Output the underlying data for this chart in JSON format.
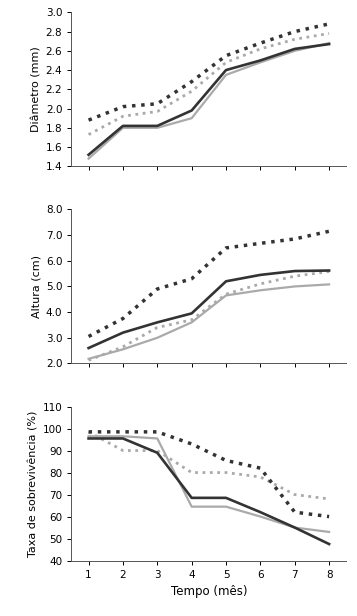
{
  "x": [
    1,
    2,
    3,
    4,
    5,
    6,
    7,
    8
  ],
  "diameter": {
    "black_solid": [
      1.52,
      1.82,
      1.82,
      1.98,
      2.4,
      2.5,
      2.62,
      2.67
    ],
    "black_dotted": [
      1.88,
      2.02,
      2.05,
      2.28,
      2.55,
      2.68,
      2.8,
      2.88
    ],
    "gray_solid": [
      1.48,
      1.8,
      1.8,
      1.9,
      2.35,
      2.48,
      2.6,
      2.68
    ],
    "gray_dotted": [
      1.73,
      1.92,
      1.97,
      2.18,
      2.48,
      2.62,
      2.72,
      2.78
    ],
    "ylim": [
      1.4,
      3.0
    ],
    "yticks": [
      1.4,
      1.6,
      1.8,
      2.0,
      2.2,
      2.4,
      2.6,
      2.8,
      3.0
    ],
    "ylabel": "Diâmetro (mm)"
  },
  "height": {
    "black_solid": [
      2.6,
      3.2,
      3.6,
      3.95,
      5.2,
      5.45,
      5.6,
      5.62
    ],
    "black_dotted": [
      3.05,
      3.75,
      4.9,
      5.3,
      6.5,
      6.68,
      6.85,
      7.15
    ],
    "gray_solid": [
      2.18,
      2.55,
      3.0,
      3.6,
      4.65,
      4.85,
      5.0,
      5.08
    ],
    "gray_dotted": [
      2.12,
      2.65,
      3.4,
      3.7,
      4.7,
      5.1,
      5.4,
      5.58
    ],
    "ylim": [
      2.0,
      8.0
    ],
    "yticks": [
      2.0,
      3.0,
      4.0,
      5.0,
      6.0,
      7.0,
      8.0
    ],
    "ylabel": "Altura (cm)"
  },
  "survival": {
    "black_solid": [
      95.5,
      95.5,
      89.0,
      68.5,
      68.5,
      62.0,
      55.0,
      47.5
    ],
    "black_dotted": [
      98.5,
      98.5,
      98.5,
      93.0,
      85.5,
      82.0,
      62.0,
      60.0
    ],
    "gray_solid": [
      96.5,
      96.5,
      95.5,
      64.5,
      64.5,
      60.0,
      55.0,
      53.0
    ],
    "gray_dotted": [
      98.5,
      90.0,
      90.0,
      80.0,
      80.0,
      78.0,
      70.0,
      68.0
    ],
    "ylim": [
      40,
      110
    ],
    "yticks": [
      40,
      50,
      60,
      70,
      80,
      90,
      100,
      110
    ],
    "ylabel": "Taxa de sobrevivência (%)"
  },
  "xlabel": "Tempo (mês)",
  "black_color": "#333333",
  "gray_color": "#aaaaaa",
  "lw_solid": 1.6,
  "lw_dotted": 2.0
}
